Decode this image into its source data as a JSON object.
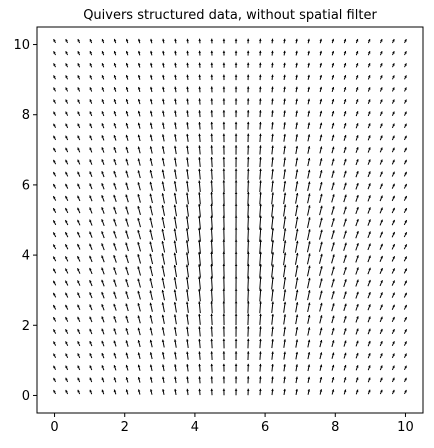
{
  "chart_data": {
    "type": "quiver",
    "title": "Quivers structured data, without spatial filter",
    "xlabel": "",
    "ylabel": "",
    "xlim": [
      -0.5,
      10.5
    ],
    "ylim": [
      -0.5,
      10.5
    ],
    "xticks": [
      0,
      2,
      4,
      6,
      8,
      10
    ],
    "yticks": [
      0,
      2,
      4,
      6,
      8,
      10
    ],
    "grid": false,
    "color": "#000000",
    "field": {
      "x_start": 0,
      "x_end": 10,
      "x_count": 30,
      "y_start": 0.1,
      "y_end": 10.1,
      "y_count": 30,
      "center_x": 5.1,
      "center_y": 4.2,
      "peak_length": 0.42,
      "base_length": 0.12,
      "tilt_per_unit_x": 0.1,
      "falloff": 0.09
    }
  }
}
